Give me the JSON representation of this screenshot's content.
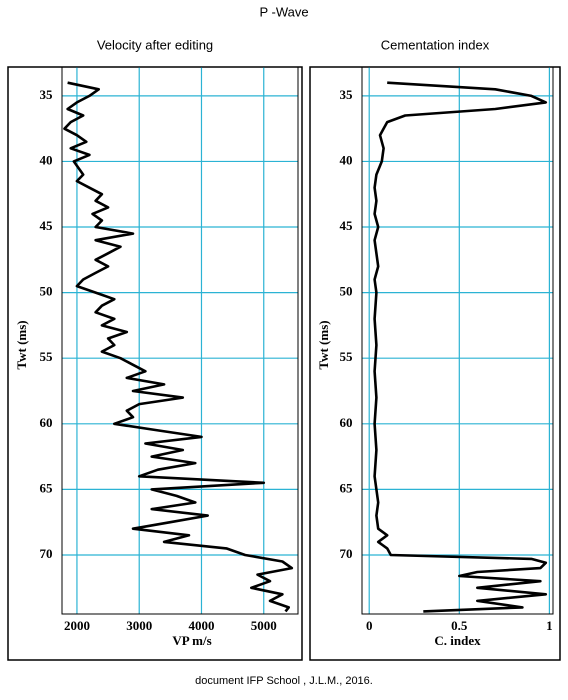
{
  "title": "P -Wave",
  "footer": "document IFP School , J.L.M., 2016.",
  "chart_data": [
    {
      "type": "line",
      "orientation": "vertical",
      "title": "Velocity after editing",
      "xlabel": "VP m/s",
      "ylabel": "Twt (ms)",
      "color": "#000000",
      "grid": true,
      "y_inverted": true,
      "xlim": [
        1760,
        5550
      ],
      "xticks": [
        2000,
        3000,
        4000,
        5000
      ],
      "ylim": [
        32.8,
        74.5
      ],
      "yticks": [
        35,
        40,
        45,
        50,
        55,
        60,
        65,
        70
      ],
      "y": [
        34,
        34.5,
        35,
        35.5,
        36,
        36.5,
        37,
        37.5,
        38,
        38.5,
        39,
        39.5,
        40,
        41,
        41.5,
        42,
        42.5,
        43,
        43.5,
        44,
        44.5,
        45,
        45.5,
        46,
        46.5,
        47,
        47.5,
        48,
        48.5,
        49,
        49.5,
        50,
        50.5,
        51,
        51.5,
        52,
        52.5,
        53,
        53.5,
        54,
        54.5,
        55,
        55.5,
        56,
        56.5,
        57,
        57.5,
        58,
        58.5,
        59,
        59.5,
        60,
        60.5,
        61,
        61.5,
        62,
        62.5,
        63,
        63.5,
        64,
        64.5,
        65,
        65.5,
        66,
        66.5,
        67,
        67.5,
        68,
        68.5,
        69,
        69.5,
        70,
        70.5,
        71,
        71.5,
        72,
        72.5,
        73,
        73.5,
        74,
        74.3
      ],
      "values": [
        1850,
        2350,
        2200,
        2000,
        1850,
        2100,
        1900,
        1800,
        2000,
        2150,
        1900,
        2200,
        1950,
        2100,
        2000,
        2200,
        2400,
        2300,
        2500,
        2250,
        2400,
        2300,
        2900,
        2300,
        2700,
        2500,
        2300,
        2500,
        2300,
        2100,
        2000,
        2300,
        2600,
        2400,
        2300,
        2600,
        2400,
        2800,
        2500,
        2600,
        2400,
        2700,
        2900,
        3100,
        2800,
        3400,
        2900,
        3700,
        3000,
        2800,
        2900,
        2600,
        3300,
        4000,
        3100,
        3700,
        3200,
        3900,
        3300,
        3000,
        5000,
        3200,
        3600,
        3900,
        3200,
        4100,
        3500,
        2900,
        3800,
        3400,
        4400,
        4700,
        5300,
        5450,
        4900,
        5100,
        4800,
        5300,
        5100,
        5400,
        5350
      ]
    },
    {
      "type": "line",
      "orientation": "vertical",
      "title": "Cementation index",
      "xlabel": "C. index",
      "ylabel": "Twt (ms)",
      "color": "#000000",
      "grid": true,
      "y_inverted": true,
      "xlim": [
        -0.04,
        1.02
      ],
      "xticks": [
        0,
        0.5,
        1
      ],
      "ylim": [
        32.8,
        74.5
      ],
      "yticks": [
        35,
        40,
        45,
        50,
        55,
        60,
        65,
        70
      ],
      "y": [
        34,
        34.5,
        35,
        35.5,
        36,
        36.5,
        37,
        38,
        39,
        40,
        41,
        42,
        43,
        44,
        45,
        46,
        47,
        48,
        49,
        50,
        52,
        54,
        56,
        58,
        60,
        62,
        64,
        66,
        67,
        68,
        68.5,
        69,
        69.5,
        70,
        70.3,
        70.6,
        71,
        71.3,
        71.6,
        72,
        72.5,
        73,
        73.5,
        74,
        74.3
      ],
      "values": [
        0.1,
        0.7,
        0.9,
        0.98,
        0.7,
        0.2,
        0.1,
        0.06,
        0.08,
        0.07,
        0.04,
        0.03,
        0.04,
        0.03,
        0.05,
        0.03,
        0.04,
        0.05,
        0.03,
        0.04,
        0.03,
        0.04,
        0.03,
        0.04,
        0.03,
        0.04,
        0.03,
        0.05,
        0.04,
        0.05,
        0.1,
        0.05,
        0.1,
        0.12,
        0.9,
        0.98,
        0.95,
        0.6,
        0.5,
        0.95,
        0.6,
        0.98,
        0.6,
        0.85,
        0.3
      ]
    }
  ]
}
